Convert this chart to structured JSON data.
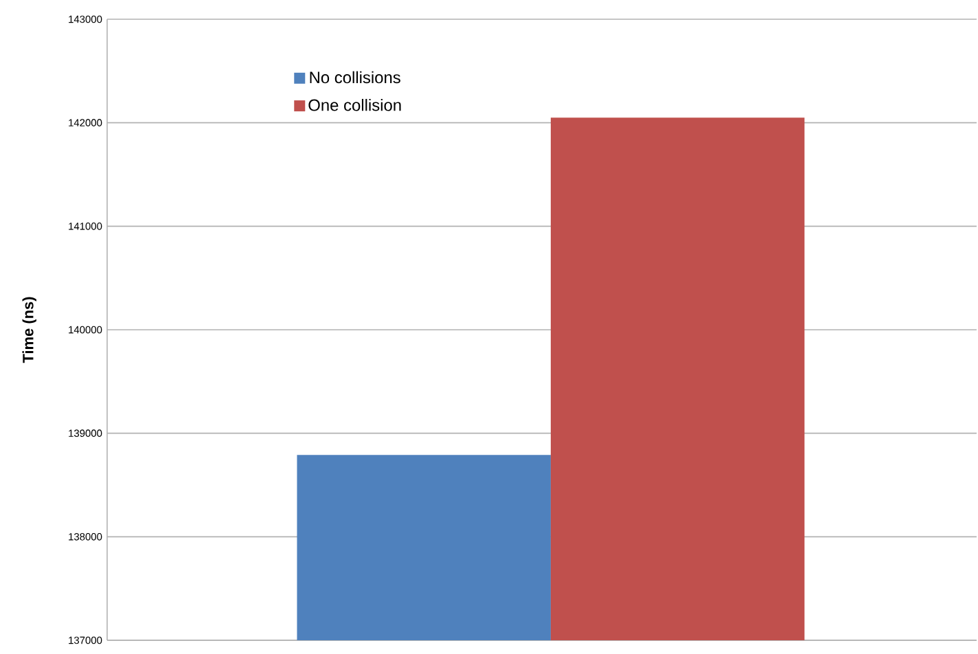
{
  "chart_data": {
    "type": "bar",
    "ylabel": "Time (ns)",
    "categories": [
      null
    ],
    "series": [
      {
        "name": "No collisions",
        "color": "#4f81bd",
        "values": [
          138790
        ]
      },
      {
        "name": "One collision",
        "color": "#c0504d",
        "values": [
          142050
        ]
      }
    ],
    "ylim": [
      137000,
      143000
    ],
    "yticks": [
      137000,
      138000,
      139000,
      140000,
      141000,
      142000,
      143000
    ],
    "grid": "y",
    "legend": "top left",
    "tick_labels": "y"
  }
}
